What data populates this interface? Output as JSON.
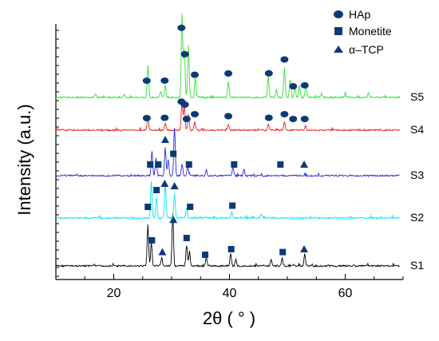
{
  "chart_data": {
    "type": "line",
    "title": "",
    "xlabel": "2θ ( ° )",
    "ylabel": "Intensity (a.u.)",
    "xlim": [
      10,
      70
    ],
    "x_ticks": [
      "20",
      "40",
      "60"
    ],
    "y_ticks_shown": false,
    "grid": false,
    "legend": {
      "placement": "top-right",
      "entries": [
        {
          "label": "HAp",
          "marker": "ellipse"
        },
        {
          "label": "Monetite",
          "marker": "square"
        },
        {
          "label": "α–TCP",
          "marker": "triangle"
        }
      ]
    },
    "series": [
      {
        "name": "S1",
        "color": "#000000",
        "offset": 0,
        "peaks": [
          [
            25.9,
            1.0
          ],
          [
            26.5,
            0.6
          ],
          [
            28.3,
            0.2
          ],
          [
            30.2,
            1.3
          ],
          [
            32.6,
            0.5
          ],
          [
            33.1,
            0.35
          ],
          [
            36.0,
            0.2
          ],
          [
            40.2,
            0.3
          ],
          [
            41.1,
            0.15
          ],
          [
            47.2,
            0.15
          ],
          [
            49.1,
            0.2
          ],
          [
            53.0,
            0.3
          ]
        ],
        "markers": [
          {
            "type": "square",
            "x": 26.6
          },
          {
            "type": "triangle",
            "x": 28.4
          },
          {
            "type": "triangle",
            "x": 30.3
          },
          {
            "type": "square",
            "x": 32.6
          },
          {
            "type": "square",
            "x": 35.8
          },
          {
            "type": "square",
            "x": 40.3
          },
          {
            "type": "square",
            "x": 49.2
          },
          {
            "type": "triangle",
            "x": 52.9
          }
        ]
      },
      {
        "name": "S2",
        "color": "#00e5ee",
        "offset": 1,
        "peaks": [
          [
            26.5,
            0.9
          ],
          [
            27.4,
            0.5
          ],
          [
            28.9,
            0.9
          ],
          [
            30.5,
            0.6
          ],
          [
            32.6,
            0.25
          ],
          [
            40.4,
            0.15
          ],
          [
            45.5,
            0.1
          ]
        ],
        "markers": [
          {
            "type": "square",
            "x": 25.9
          },
          {
            "type": "square",
            "x": 27.4
          },
          {
            "type": "triangle",
            "x": 28.8
          },
          {
            "type": "triangle",
            "x": 30.5
          },
          {
            "type": "square",
            "x": 33.2
          },
          {
            "type": "square",
            "x": 40.5
          }
        ]
      },
      {
        "name": "S3",
        "color": "#2a2ad0",
        "offset": 2,
        "peaks": [
          [
            26.6,
            0.6
          ],
          [
            27.3,
            0.45
          ],
          [
            28.9,
            0.7
          ],
          [
            29.4,
            0.4
          ],
          [
            30.5,
            1.2
          ],
          [
            31.8,
            0.3
          ],
          [
            32.8,
            0.25
          ],
          [
            36.0,
            0.15
          ],
          [
            40.6,
            0.2
          ],
          [
            42.5,
            0.15
          ]
        ],
        "markers": [
          {
            "type": "square",
            "x": 26.3
          },
          {
            "type": "square",
            "x": 27.7
          },
          {
            "type": "triangle",
            "x": 28.9
          },
          {
            "type": "square",
            "x": 30.3
          },
          {
            "type": "square",
            "x": 33.0
          },
          {
            "type": "square",
            "x": 40.8
          },
          {
            "type": "square",
            "x": 48.8
          },
          {
            "type": "triangle",
            "x": 52.9
          }
        ]
      },
      {
        "name": "S4",
        "color": "#e8201a",
        "offset": 3,
        "peaks": [
          [
            25.9,
            0.35
          ],
          [
            28.9,
            0.15
          ],
          [
            31.8,
            0.7
          ],
          [
            32.2,
            0.6
          ],
          [
            32.9,
            0.4
          ],
          [
            34.0,
            0.2
          ],
          [
            39.8,
            0.15
          ],
          [
            46.7,
            0.15
          ],
          [
            49.5,
            0.2
          ],
          [
            53.1,
            0.1
          ]
        ],
        "markers": [
          {
            "type": "ellipse",
            "x": 25.7
          },
          {
            "type": "ellipse",
            "x": 28.8
          },
          {
            "type": "ellipse",
            "x": 31.7
          },
          {
            "type": "ellipse",
            "x": 32.3
          },
          {
            "type": "ellipse",
            "x": 32.6
          },
          {
            "type": "ellipse",
            "x": 34.0
          },
          {
            "type": "ellipse",
            "x": 39.8
          },
          {
            "type": "ellipse",
            "x": 46.8
          },
          {
            "type": "ellipse",
            "x": 49.5
          },
          {
            "type": "ellipse",
            "x": 51.0
          },
          {
            "type": "ellipse",
            "x": 53.0
          }
        ]
      },
      {
        "name": "S5",
        "color": "#33e033",
        "offset": 4,
        "peaks": [
          [
            16.8,
            0.08
          ],
          [
            21.8,
            0.08
          ],
          [
            25.9,
            0.75
          ],
          [
            28.1,
            0.15
          ],
          [
            28.9,
            0.3
          ],
          [
            31.8,
            2.1
          ],
          [
            32.2,
            1.2
          ],
          [
            32.9,
            1.3
          ],
          [
            34.1,
            0.5
          ],
          [
            39.8,
            0.4
          ],
          [
            46.7,
            0.55
          ],
          [
            48.1,
            0.2
          ],
          [
            49.5,
            0.75
          ],
          [
            50.5,
            0.45
          ],
          [
            51.3,
            0.3
          ],
          [
            52.1,
            0.3
          ],
          [
            53.2,
            0.35
          ],
          [
            55.9,
            0.1
          ],
          [
            60.0,
            0.1
          ],
          [
            64.0,
            0.1
          ]
        ],
        "markers": [
          {
            "type": "ellipse",
            "x": 25.7
          },
          {
            "type": "ellipse",
            "x": 28.8
          },
          {
            "type": "ellipse",
            "x": 31.7
          },
          {
            "type": "ellipse",
            "x": 32.3
          },
          {
            "type": "ellipse",
            "x": 34.0
          },
          {
            "type": "ellipse",
            "x": 39.8
          },
          {
            "type": "ellipse",
            "x": 46.8
          },
          {
            "type": "ellipse",
            "x": 49.5
          },
          {
            "type": "ellipse",
            "x": 51.0
          },
          {
            "type": "ellipse",
            "x": 53.0
          }
        ]
      }
    ]
  }
}
